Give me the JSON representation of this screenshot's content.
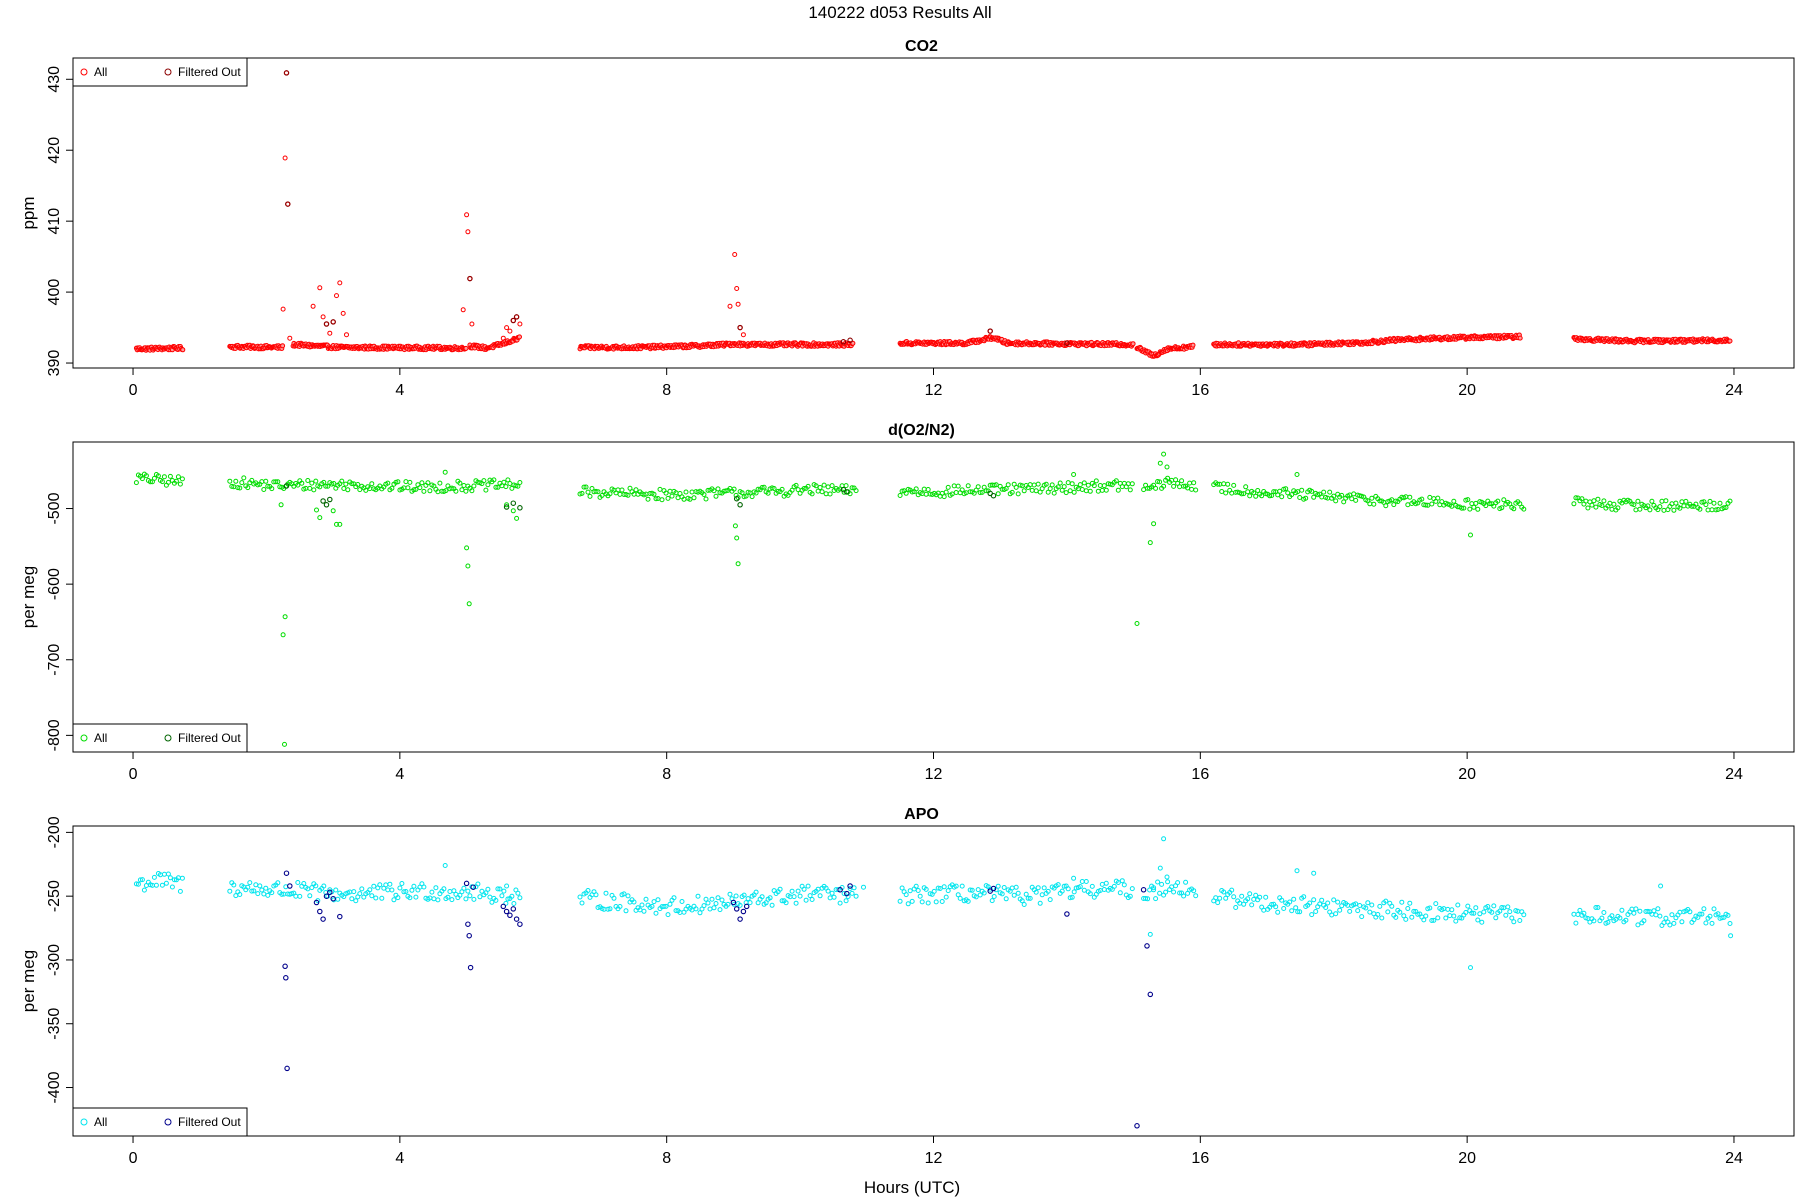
{
  "figure": {
    "title": "140222   d053   Results All",
    "xlabel": "Hours (UTC)"
  },
  "chart_data": [
    {
      "type": "scatter",
      "title": "CO2",
      "ylabel": "ppm",
      "xlabel": "",
      "xlim": [
        -0.9,
        24.9
      ],
      "ylim": [
        389.3,
        433
      ],
      "xticks": [
        0,
        4,
        8,
        12,
        16,
        20,
        24
      ],
      "yticks": [
        390,
        400,
        410,
        420,
        430
      ],
      "grid": false,
      "legend": {
        "position": "top-left",
        "entries": [
          "All",
          "Filtered Out"
        ]
      },
      "colors": {
        "all": "#ff0000",
        "filtered": "#8b0000"
      },
      "series": [
        {
          "name": "All",
          "baseline": [
            [
              [
                0.05,
                392.0
              ],
              [
                0.75,
                392.1
              ]
            ],
            [
              [
                1.45,
                392.3
              ],
              [
                2.25,
                392.2
              ]
            ],
            [
              [
                2.4,
                392.6
              ],
              [
                3.1,
                392.2
              ],
              [
                5.0,
                392.1
              ]
            ],
            [
              [
                5.05,
                392.4
              ],
              [
                5.3,
                392.1
              ],
              [
                5.5,
                392.6
              ],
              [
                5.8,
                393.5
              ]
            ],
            [
              [
                6.7,
                392.2
              ],
              [
                7.5,
                392.2
              ],
              [
                8.4,
                392.4
              ],
              [
                8.9,
                392.6
              ],
              [
                9.0,
                392.7
              ],
              [
                9.2,
                392.6
              ],
              [
                10.5,
                392.6
              ],
              [
                10.8,
                392.6
              ]
            ],
            [
              [
                11.5,
                392.8
              ],
              [
                12.5,
                392.8
              ],
              [
                12.9,
                393.6
              ],
              [
                13.1,
                392.8
              ],
              [
                15.0,
                392.6
              ]
            ],
            [
              [
                15.05,
                392.2
              ],
              [
                15.3,
                391.0
              ],
              [
                15.5,
                392.0
              ],
              [
                15.9,
                392.3
              ]
            ],
            [
              [
                16.2,
                392.6
              ],
              [
                17.5,
                392.6
              ],
              [
                18.5,
                392.9
              ],
              [
                19.0,
                393.3
              ],
              [
                20.0,
                393.6
              ],
              [
                20.8,
                393.7
              ]
            ],
            [
              [
                21.6,
                393.4
              ],
              [
                22.5,
                393.1
              ],
              [
                23.95,
                393.2
              ]
            ]
          ],
          "spikes": [
            [
              2.3,
              430.9
            ],
            [
              2.28,
              418.9
            ],
            [
              2.32,
              412.4
            ],
            [
              2.25,
              397.6
            ],
            [
              2.35,
              393.5
            ],
            [
              2.7,
              398.0
            ],
            [
              2.8,
              400.6
            ],
            [
              2.85,
              396.5
            ],
            [
              2.9,
              395.5
            ],
            [
              2.95,
              394.2
            ],
            [
              3.0,
              395.8
            ],
            [
              3.05,
              399.5
            ],
            [
              3.1,
              401.3
            ],
            [
              3.15,
              397.0
            ],
            [
              3.2,
              394.0
            ],
            [
              4.95,
              397.5
            ],
            [
              5.0,
              410.9
            ],
            [
              5.02,
              408.5
            ],
            [
              5.05,
              401.9
            ],
            [
              5.08,
              395.5
            ],
            [
              5.55,
              393.5
            ],
            [
              5.6,
              395.0
            ],
            [
              5.65,
              394.5
            ],
            [
              5.7,
              396.0
            ],
            [
              5.75,
              396.5
            ],
            [
              5.8,
              395.5
            ],
            [
              8.95,
              398.0
            ],
            [
              9.02,
              405.3
            ],
            [
              9.05,
              400.5
            ],
            [
              9.07,
              398.3
            ],
            [
              9.1,
              395.0
            ],
            [
              9.15,
              394.0
            ],
            [
              12.85,
              394.5
            ]
          ]
        },
        {
          "name": "Filtered Out",
          "points": [
            [
              2.3,
              430.9
            ],
            [
              2.32,
              412.4
            ],
            [
              2.9,
              395.5
            ],
            [
              3.0,
              395.8
            ],
            [
              5.05,
              401.9
            ],
            [
              5.7,
              396.0
            ],
            [
              5.75,
              396.5
            ],
            [
              9.1,
              395.0
            ],
            [
              10.65,
              393.0
            ],
            [
              10.75,
              393.2
            ],
            [
              12.85,
              394.5
            ],
            [
              14.0,
              392.8
            ]
          ]
        }
      ]
    },
    {
      "type": "scatter",
      "title": "d(O2/N2)",
      "ylabel": "per meg",
      "xlabel": "",
      "xlim": [
        -0.9,
        24.9
      ],
      "ylim": [
        -822,
        -412
      ],
      "xticks": [
        0,
        4,
        8,
        12,
        16,
        20,
        24
      ],
      "yticks": [
        -500,
        -600,
        -700,
        -800
      ],
      "grid": false,
      "legend": {
        "position": "bottom-left",
        "entries": [
          "All",
          "Filtered Out"
        ]
      },
      "colors": {
        "all": "#00dd00",
        "filtered": "#006400"
      },
      "series": [
        {
          "name": "All",
          "segments": [
            {
              "start": 0.05,
              "end": 0.75,
              "values": [
                -460,
                -462,
                -465
              ]
            },
            {
              "start": 1.45,
              "end": 5.8,
              "values": [
                -465,
                -470,
                -468,
                -470,
                -472,
                -470,
                -468
              ]
            },
            {
              "start": 6.7,
              "end": 10.85,
              "values": [
                -478,
                -480,
                -482,
                -480,
                -478,
                -475,
                -477
              ]
            },
            {
              "start": 11.5,
              "end": 15.0,
              "values": [
                -477,
                -478,
                -476,
                -475,
                -474,
                -472,
                -470,
                -470
              ]
            },
            {
              "start": 15.15,
              "end": 15.95,
              "values": [
                -475,
                -465,
                -470
              ]
            },
            {
              "start": 16.2,
              "end": 20.85,
              "values": [
                -472,
                -478,
                -482,
                -486,
                -490,
                -492,
                -495,
                -495
              ]
            },
            {
              "start": 21.6,
              "end": 23.95,
              "values": [
                -492,
                -495,
                -496,
                -496,
                -495
              ]
            }
          ],
          "outliers": [
            [
              2.28,
              -643
            ],
            [
              2.25,
              -667
            ],
            [
              2.27,
              -812
            ],
            [
              2.22,
              -495
            ],
            [
              2.75,
              -502
            ],
            [
              2.8,
              -512
            ],
            [
              3.0,
              -503
            ],
            [
              3.05,
              -521
            ],
            [
              3.1,
              -521
            ],
            [
              4.68,
              -452
            ],
            [
              5.0,
              -552
            ],
            [
              5.02,
              -576
            ],
            [
              5.04,
              -626
            ],
            [
              5.6,
              -495
            ],
            [
              5.7,
              -503
            ],
            [
              5.75,
              -513
            ],
            [
              9.03,
              -523
            ],
            [
              9.05,
              -539
            ],
            [
              9.07,
              -573
            ],
            [
              14.1,
              -455
            ],
            [
              15.05,
              -652
            ],
            [
              15.25,
              -545
            ],
            [
              15.3,
              -520
            ],
            [
              15.45,
              -428
            ],
            [
              15.4,
              -440
            ],
            [
              15.5,
              -445
            ],
            [
              17.45,
              -455
            ],
            [
              20.05,
              -535
            ]
          ]
        },
        {
          "name": "Filtered Out",
          "points": [
            [
              2.3,
              -470
            ],
            [
              2.85,
              -490
            ],
            [
              2.9,
              -495
            ],
            [
              2.95,
              -488
            ],
            [
              5.6,
              -498
            ],
            [
              5.7,
              -493
            ],
            [
              5.8,
              -499
            ],
            [
              9.05,
              -487
            ],
            [
              9.1,
              -495
            ],
            [
              10.65,
              -475
            ],
            [
              10.7,
              -478
            ],
            [
              12.85,
              -480
            ],
            [
              12.9,
              -483
            ]
          ]
        }
      ]
    },
    {
      "type": "scatter",
      "title": "APO",
      "ylabel": "per meg",
      "xlabel": "",
      "xlim": [
        -0.9,
        24.9
      ],
      "ylim": [
        -438,
        -195
      ],
      "xticks": [
        0,
        4,
        8,
        12,
        16,
        20,
        24
      ],
      "yticks": [
        -200,
        -250,
        -300,
        -350,
        -400
      ],
      "grid": false,
      "legend": {
        "position": "bottom-left",
        "entries": [
          "All",
          "Filtered Out"
        ]
      },
      "colors": {
        "all": "#00e5ee",
        "filtered": "#00008b"
      },
      "series": [
        {
          "name": "All",
          "segments": [
            {
              "start": 0.05,
              "end": 0.75,
              "values": [
                -240,
                -238,
                -241
              ]
            },
            {
              "start": 1.45,
              "end": 5.8,
              "values": [
                -243,
                -245,
                -248,
                -248,
                -246,
                -247,
                -250
              ]
            },
            {
              "start": 6.7,
              "end": 10.85,
              "values": [
                -252,
                -255,
                -258,
                -256,
                -252,
                -248,
                -250
              ]
            },
            {
              "start": 11.5,
              "end": 15.0,
              "values": [
                -250,
                -248,
                -248,
                -250,
                -248,
                -244,
                -245
              ]
            },
            {
              "start": 15.15,
              "end": 15.95,
              "values": [
                -250,
                -240,
                -248
              ]
            },
            {
              "start": 16.2,
              "end": 20.85,
              "values": [
                -250,
                -255,
                -258,
                -260,
                -262,
                -264,
                -265
              ]
            },
            {
              "start": 21.6,
              "end": 23.95,
              "values": [
                -265,
                -266,
                -267,
                -266,
                -265
              ]
            }
          ],
          "outliers": [
            [
              4.68,
              -226
            ],
            [
              5.6,
              -242
            ],
            [
              10.95,
              -243
            ],
            [
              14.1,
              -236
            ],
            [
              15.45,
              -205
            ],
            [
              15.4,
              -228
            ],
            [
              15.5,
              -235
            ],
            [
              15.3,
              -245
            ],
            [
              15.25,
              -280
            ],
            [
              17.45,
              -230
            ],
            [
              17.7,
              -232
            ],
            [
              20.05,
              -306
            ],
            [
              22.9,
              -242
            ],
            [
              23.95,
              -281
            ]
          ]
        },
        {
          "name": "Filtered Out",
          "points": [
            [
              2.3,
              -232
            ],
            [
              2.28,
              -305
            ],
            [
              2.29,
              -314
            ],
            [
              2.31,
              -385
            ],
            [
              2.35,
              -242
            ],
            [
              2.75,
              -255
            ],
            [
              2.8,
              -262
            ],
            [
              2.85,
              -268
            ],
            [
              2.9,
              -250
            ],
            [
              2.95,
              -247
            ],
            [
              3.0,
              -252
            ],
            [
              3.1,
              -266
            ],
            [
              5.0,
              -240
            ],
            [
              5.02,
              -272
            ],
            [
              5.04,
              -281
            ],
            [
              5.06,
              -306
            ],
            [
              5.1,
              -243
            ],
            [
              5.55,
              -258
            ],
            [
              5.6,
              -262
            ],
            [
              5.65,
              -265
            ],
            [
              5.7,
              -260
            ],
            [
              5.75,
              -268
            ],
            [
              5.8,
              -272
            ],
            [
              9.0,
              -255
            ],
            [
              9.05,
              -260
            ],
            [
              9.1,
              -268
            ],
            [
              9.15,
              -262
            ],
            [
              9.2,
              -258
            ],
            [
              10.6,
              -245
            ],
            [
              10.7,
              -248
            ],
            [
              10.75,
              -242
            ],
            [
              12.85,
              -246
            ],
            [
              12.9,
              -244
            ],
            [
              14.0,
              -264
            ],
            [
              15.05,
              -430
            ],
            [
              15.2,
              -289
            ],
            [
              15.25,
              -327
            ],
            [
              15.15,
              -245
            ]
          ]
        }
      ]
    }
  ]
}
